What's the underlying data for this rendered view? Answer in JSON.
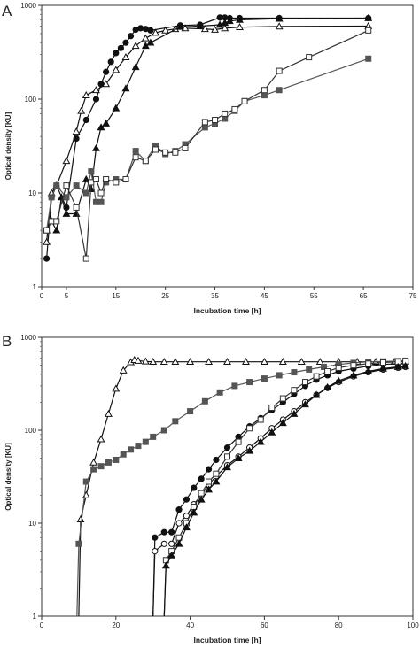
{
  "chart_data": [
    {
      "panel": "A",
      "type": "line",
      "xlabel": "Incubation time [h]",
      "ylabel": "Optical density [KU]",
      "yscale": "log",
      "xlim": [
        0,
        75
      ],
      "ylim": [
        1,
        1000
      ],
      "xticks": [
        "0",
        "5",
        "15",
        "25",
        "35",
        "45",
        "55",
        "65",
        "75"
      ],
      "xtick_values": [
        0,
        5,
        15,
        25,
        35,
        45,
        55,
        65,
        75
      ],
      "yticks": [
        "1",
        "10",
        "100",
        "1000"
      ],
      "ytick_values": [
        1,
        10,
        100,
        1000
      ],
      "grid": false,
      "series": [
        {
          "marker": "filled-circle",
          "color": "#111111",
          "x": [
            1,
            2,
            3,
            5,
            7,
            9,
            11,
            12,
            13,
            14,
            15,
            16,
            17,
            18,
            19,
            20,
            21,
            22,
            28,
            32,
            36,
            37,
            38,
            40,
            48,
            66
          ],
          "y": [
            2,
            9,
            12,
            7,
            38,
            60,
            100,
            145,
            195,
            250,
            310,
            350,
            400,
            470,
            550,
            570,
            560,
            540,
            610,
            620,
            740,
            740,
            730,
            730,
            730,
            730
          ]
        },
        {
          "marker": "open-triangle",
          "color": "#111111",
          "x": [
            1,
            2,
            3,
            5,
            7,
            8,
            9,
            11,
            13,
            15,
            17,
            19,
            21,
            23,
            25,
            27,
            29,
            33,
            35,
            37,
            40,
            48,
            66
          ],
          "y": [
            3,
            10,
            12,
            22,
            45,
            75,
            110,
            125,
            145,
            205,
            280,
            370,
            445,
            510,
            540,
            560,
            570,
            560,
            550,
            570,
            585,
            595,
            600
          ]
        },
        {
          "marker": "filled-triangle",
          "color": "#111111",
          "x": [
            1,
            2,
            3,
            4,
            5,
            7,
            9,
            10,
            11,
            12,
            13,
            15,
            17,
            19,
            21,
            22,
            28,
            32,
            36,
            37,
            38,
            40,
            48,
            66
          ],
          "y": [
            4,
            5,
            4,
            9,
            6,
            6,
            14,
            11,
            30,
            50,
            55,
            80,
            130,
            220,
            370,
            400,
            590,
            600,
            620,
            650,
            680,
            700,
            720,
            730
          ]
        },
        {
          "marker": "filled-square",
          "color": "#555555",
          "x": [
            1,
            2,
            3,
            5,
            7,
            9,
            10,
            11,
            12,
            13,
            15,
            17,
            19,
            21,
            23,
            25,
            27,
            29,
            33,
            35,
            37,
            39,
            41,
            45,
            48,
            66
          ],
          "y": [
            4,
            9,
            12,
            9,
            12,
            10,
            17,
            8,
            8,
            13,
            14,
            14,
            28,
            22,
            32,
            26,
            28,
            33,
            50,
            55,
            62,
            75,
            95,
            110,
            125,
            270
          ]
        },
        {
          "marker": "open-square",
          "color": "#333333",
          "x": [
            1,
            2,
            3,
            5,
            7,
            9,
            10,
            11,
            12,
            13,
            15,
            17,
            19,
            21,
            23,
            25,
            27,
            29,
            33,
            35,
            37,
            39,
            41,
            45,
            48,
            54,
            66
          ],
          "y": [
            4,
            5,
            5,
            12,
            7,
            2,
            13,
            14,
            10,
            14,
            13,
            14,
            24,
            22,
            29,
            27,
            27,
            30,
            57,
            60,
            70,
            78,
            95,
            125,
            200,
            280,
            540
          ]
        }
      ]
    },
    {
      "panel": "B",
      "type": "line",
      "xlabel": "Incubation time [h]",
      "ylabel": "Optical density [KU]",
      "yscale": "log",
      "xlim": [
        0,
        100
      ],
      "ylim": [
        1,
        1000
      ],
      "xticks": [
        "0",
        "20",
        "40",
        "60",
        "80",
        "100"
      ],
      "xtick_values": [
        0,
        20,
        40,
        60,
        80,
        100
      ],
      "yticks": [
        "1",
        "10",
        "100",
        "1000"
      ],
      "ytick_values": [
        1,
        10,
        100,
        1000
      ],
      "grid": false,
      "series": [
        {
          "marker": "open-triangle",
          "color": "#111111",
          "x": [
            10,
            10.5,
            12,
            14,
            16,
            18,
            20,
            22,
            24,
            25,
            26,
            28,
            30,
            33,
            36,
            40,
            45,
            50,
            55,
            60,
            65,
            70,
            75,
            80,
            85,
            90,
            95,
            98
          ],
          "y": [
            1,
            11,
            20,
            45,
            80,
            150,
            280,
            440,
            540,
            570,
            560,
            550,
            545,
            545,
            545,
            545,
            545,
            545,
            545,
            545,
            545,
            545,
            545,
            545,
            545,
            545,
            545,
            545
          ]
        },
        {
          "marker": "filled-square",
          "color": "#555555",
          "x": [
            9.5,
            10,
            12,
            14,
            16,
            18,
            20,
            22,
            24,
            26,
            28,
            30,
            33,
            36,
            40,
            44,
            48,
            52,
            56,
            60,
            64,
            68,
            72,
            76,
            80,
            84,
            88,
            92,
            96,
            98
          ],
          "y": [
            1,
            6,
            28,
            38,
            41,
            45,
            48,
            55,
            62,
            68,
            75,
            85,
            100,
            125,
            160,
            205,
            255,
            300,
            330,
            360,
            390,
            420,
            450,
            480,
            510,
            530,
            545,
            550,
            555,
            560
          ]
        },
        {
          "marker": "filled-circle",
          "color": "#111111",
          "x": [
            30,
            30.5,
            33,
            35,
            37,
            39,
            41,
            43,
            45,
            47,
            50,
            53,
            56,
            59,
            62,
            65,
            68,
            71,
            74,
            77,
            80,
            84,
            88,
            92,
            96,
            98
          ],
          "y": [
            1,
            7,
            8,
            8,
            14,
            18,
            24,
            30,
            38,
            48,
            65,
            85,
            110,
            135,
            165,
            200,
            245,
            300,
            350,
            390,
            430,
            460,
            490,
            510,
            520,
            525
          ]
        },
        {
          "marker": "open-circle",
          "color": "#111111",
          "x": [
            30,
            30.5,
            33,
            35,
            37,
            39,
            41,
            43,
            45,
            47,
            50,
            53,
            56,
            59,
            62,
            65,
            68,
            71,
            74,
            77,
            80,
            84,
            88,
            92,
            96,
            98
          ],
          "y": [
            1,
            5,
            6,
            6,
            10,
            12,
            16,
            20,
            26,
            32,
            42,
            52,
            65,
            82,
            105,
            130,
            160,
            200,
            240,
            285,
            330,
            380,
            420,
            450,
            470,
            480
          ]
        },
        {
          "marker": "open-square",
          "color": "#333333",
          "x": [
            33,
            33.5,
            35,
            37,
            39,
            41,
            43,
            45,
            47,
            50,
            53,
            56,
            59,
            62,
            65,
            68,
            71,
            74,
            77,
            80,
            84,
            88,
            92,
            96,
            98
          ],
          "y": [
            1,
            4,
            5,
            7,
            10,
            15,
            21,
            28,
            34,
            52,
            75,
            105,
            130,
            175,
            220,
            270,
            330,
            380,
            430,
            470,
            500,
            520,
            535,
            545,
            550
          ]
        },
        {
          "marker": "filled-triangle",
          "color": "#111111",
          "x": [
            33,
            33.5,
            35,
            37,
            39,
            41,
            43,
            45,
            47,
            50,
            53,
            56,
            59,
            62,
            65,
            68,
            71,
            74,
            77,
            80,
            84,
            88,
            92,
            96,
            98
          ],
          "y": [
            1,
            3.5,
            4.5,
            6,
            9,
            13,
            18,
            23,
            28,
            40,
            50,
            60,
            75,
            95,
            120,
            150,
            190,
            240,
            290,
            340,
            390,
            430,
            460,
            480,
            490
          ]
        }
      ]
    }
  ]
}
